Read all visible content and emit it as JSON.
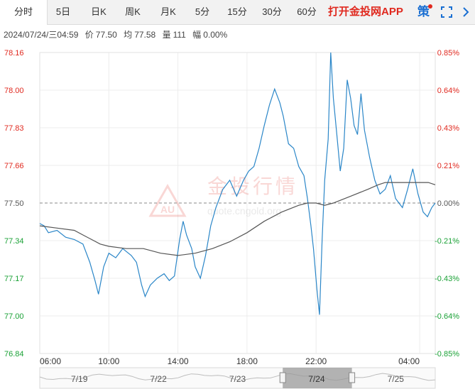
{
  "tabs": [
    {
      "label": "分时",
      "active": true
    },
    {
      "label": "5日"
    },
    {
      "label": "日K"
    },
    {
      "label": "周K"
    },
    {
      "label": "月K"
    },
    {
      "label": "5分"
    },
    {
      "label": "15分"
    },
    {
      "label": "30分"
    },
    {
      "label": "60分"
    }
  ],
  "app_link": "打开金投网APP",
  "strategy_label": "策",
  "info": {
    "datetime": "2024/07/24/三04:59",
    "price_label": "价",
    "price": "77.50",
    "avg_label": "均",
    "avg": "77.58",
    "volume_label": "量",
    "volume": "111",
    "change_label": "幅",
    "change": "0.00%"
  },
  "watermark": {
    "brand": "金投行情",
    "logo": "AU",
    "url": "quote.cngold.org"
  },
  "colors": {
    "price_line": "#2a86c8",
    "avg_line": "#555555",
    "up": "#e0291f",
    "down": "#1aa136",
    "neutral": "#555555"
  },
  "chart_data": {
    "type": "line",
    "title": "",
    "xlabel": "",
    "ylabel": "",
    "ylim": [
      76.84,
      78.16
    ],
    "y_ticks": [
      "78.16",
      "78.00",
      "77.83",
      "77.66",
      "77.50",
      "77.34",
      "77.17",
      "77.00",
      "76.84"
    ],
    "pct_ticks": [
      "0.85%",
      "0.64%",
      "0.43%",
      "0.21%",
      "0.00%",
      "-0.21%",
      "-0.43%",
      "-0.64%",
      "-0.85%"
    ],
    "reference_price": 77.5,
    "x_tick_labels": [
      "06:00",
      "10:00",
      "14:00",
      "18:00",
      "22:00",
      "04:00"
    ],
    "x_tick_hours": [
      0,
      4,
      8,
      12,
      16,
      22
    ],
    "grid": true,
    "series": [
      {
        "points": [
          [
            0.0,
            77.41
          ],
          [
            0.25,
            77.4
          ],
          [
            0.5,
            77.37
          ],
          [
            1.0,
            77.38
          ],
          [
            1.5,
            77.35
          ],
          [
            2.0,
            77.34
          ],
          [
            2.5,
            77.32
          ],
          [
            2.9,
            77.24
          ],
          [
            3.2,
            77.16
          ],
          [
            3.4,
            77.1
          ],
          [
            3.7,
            77.22
          ],
          [
            4.0,
            77.28
          ],
          [
            4.4,
            77.26
          ],
          [
            4.8,
            77.3
          ],
          [
            5.3,
            77.27
          ],
          [
            5.6,
            77.24
          ],
          [
            5.9,
            77.14
          ],
          [
            6.1,
            77.09
          ],
          [
            6.4,
            77.14
          ],
          [
            6.8,
            77.17
          ],
          [
            7.2,
            77.19
          ],
          [
            7.5,
            77.16
          ],
          [
            7.8,
            77.18
          ],
          [
            8.1,
            77.34
          ],
          [
            8.3,
            77.42
          ],
          [
            8.5,
            77.36
          ],
          [
            8.8,
            77.3
          ],
          [
            9.0,
            77.22
          ],
          [
            9.3,
            77.17
          ],
          [
            9.6,
            77.27
          ],
          [
            9.9,
            77.4
          ],
          [
            10.2,
            77.48
          ],
          [
            10.6,
            77.56
          ],
          [
            11.0,
            77.6
          ],
          [
            11.4,
            77.53
          ],
          [
            11.8,
            77.6
          ],
          [
            12.1,
            77.64
          ],
          [
            12.4,
            77.66
          ],
          [
            12.7,
            77.74
          ],
          [
            13.0,
            77.84
          ],
          [
            13.3,
            77.93
          ],
          [
            13.6,
            78.0
          ],
          [
            13.9,
            77.94
          ],
          [
            14.1,
            77.88
          ],
          [
            14.4,
            77.76
          ],
          [
            14.7,
            77.74
          ],
          [
            15.0,
            77.66
          ],
          [
            15.3,
            77.62
          ],
          [
            15.5,
            77.52
          ],
          [
            15.7,
            77.4
          ],
          [
            15.85,
            77.3
          ],
          [
            16.05,
            77.12
          ],
          [
            16.2,
            77.01
          ],
          [
            16.35,
            77.34
          ],
          [
            16.5,
            77.6
          ],
          [
            16.7,
            77.78
          ],
          [
            16.85,
            78.16
          ],
          [
            17.0,
            77.96
          ],
          [
            17.2,
            77.8
          ],
          [
            17.4,
            77.64
          ],
          [
            17.6,
            77.74
          ],
          [
            17.8,
            78.04
          ],
          [
            18.0,
            77.96
          ],
          [
            18.2,
            77.84
          ],
          [
            18.4,
            77.8
          ],
          [
            18.6,
            77.98
          ],
          [
            18.8,
            77.82
          ],
          [
            19.1,
            77.7
          ],
          [
            19.4,
            77.6
          ],
          [
            19.7,
            77.54
          ],
          [
            20.0,
            77.56
          ],
          [
            20.3,
            77.62
          ],
          [
            20.6,
            77.52
          ],
          [
            20.8,
            77.5
          ],
          [
            21.0,
            77.48
          ],
          [
            21.3,
            77.56
          ],
          [
            21.6,
            77.65
          ],
          [
            21.9,
            77.54
          ],
          [
            22.2,
            77.46
          ],
          [
            22.45,
            77.44
          ],
          [
            22.7,
            77.48
          ],
          [
            22.9,
            77.5
          ]
        ]
      },
      {
        "points": [
          [
            0.0,
            77.4
          ],
          [
            1.0,
            77.39
          ],
          [
            2.0,
            77.38
          ],
          [
            2.5,
            77.36
          ],
          [
            3.0,
            77.34
          ],
          [
            3.5,
            77.32
          ],
          [
            4.0,
            77.31
          ],
          [
            5.0,
            77.3
          ],
          [
            6.0,
            77.3
          ],
          [
            7.0,
            77.28
          ],
          [
            8.0,
            77.27
          ],
          [
            9.0,
            77.28
          ],
          [
            10.0,
            77.3
          ],
          [
            11.0,
            77.33
          ],
          [
            12.0,
            77.37
          ],
          [
            13.0,
            77.42
          ],
          [
            14.0,
            77.46
          ],
          [
            15.0,
            77.49
          ],
          [
            15.5,
            77.5
          ],
          [
            16.0,
            77.5
          ],
          [
            16.5,
            77.49
          ],
          [
            17.0,
            77.5
          ],
          [
            18.0,
            77.53
          ],
          [
            19.0,
            77.56
          ],
          [
            19.6,
            77.58
          ],
          [
            20.0,
            77.59
          ],
          [
            21.0,
            77.59
          ],
          [
            22.0,
            77.59
          ],
          [
            22.5,
            77.59
          ],
          [
            22.9,
            77.58
          ]
        ]
      }
    ]
  },
  "navigator": {
    "date_labels": [
      "7/19",
      "7/22",
      "7/23",
      "7/24",
      "7/25"
    ],
    "selected_index": 3
  }
}
